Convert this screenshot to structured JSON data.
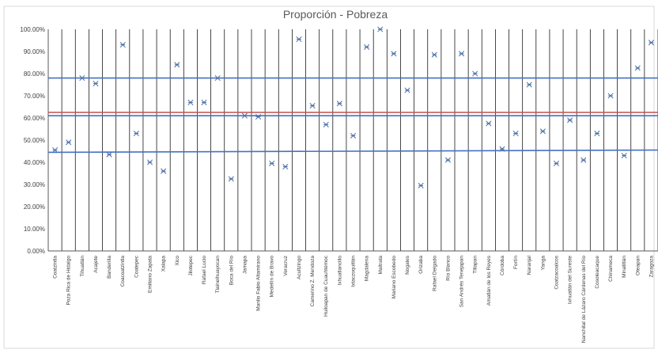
{
  "chart_data": {
    "type": "scatter",
    "title": "Proporción - Pobreza",
    "xlabel": "",
    "ylabel": "",
    "ylim": [
      0,
      100
    ],
    "y_tick_format": "percent_2dp",
    "y_ticks": [
      "0.00%",
      "10.00%",
      "20.00%",
      "30.00%",
      "40.00%",
      "50.00%",
      "60.00%",
      "70.00%",
      "80.00%",
      "90.00%",
      "100.00%"
    ],
    "grid": {
      "vertical": true,
      "horizontal": false
    },
    "legend": "none",
    "marker": "asterisk",
    "categories": [
      "Coatzintla",
      "Poza Rica de Hidalgo",
      "Tihuatlán",
      "Acajete",
      "Banderilla",
      "Coacoatzintla",
      "Coatepec",
      "Emiliano Zapata",
      "Xalapa",
      "Xico",
      "Jilotepec",
      "Rafael Lucio",
      "Tlalnelhuayocan",
      "Boca del Río",
      "Jamapa",
      "Manlio Fabio Altamirano",
      "Medellín de Bravo",
      "Veracruz",
      "Acultzingo",
      "Camerino Z. Mendoza",
      "Huiloapan de Cuauhtémoc",
      "Ixhuatlancillo",
      "Ixtaczoquitlán",
      "Magdalena",
      "Maltrata",
      "Mariano Escobedo",
      "Nogales",
      "Orizaba",
      "Rafael Delgado",
      "Río Blanco",
      "San Andrés Tenejapan",
      "Tlilapan",
      "Amatlán de los Reyes",
      "Córdoba",
      "Fortín",
      "Naranjal",
      "Yanga",
      "Coatzacoalcos",
      "Ixhuatlán del Sureste",
      "Nanchital de Lázaro Cárdenas del Río",
      "Cosoleacaque",
      "Chinameca",
      "Minatitlán",
      "Oteapan",
      "Zaragoza"
    ],
    "series": [
      {
        "values": [
          45.5,
          49,
          78,
          75.5,
          43.5,
          93,
          53,
          40,
          36,
          84,
          67,
          67,
          78,
          32.5,
          61,
          60.5,
          39.5,
          38,
          95.5,
          65.5,
          57,
          66.5,
          52,
          92,
          100,
          89,
          72.5,
          29.5,
          88.5,
          41,
          89,
          80,
          57.5,
          46,
          53,
          75,
          54,
          39.5,
          59,
          41,
          53,
          70,
          43,
          82.5,
          94
        ],
        "color": "#4a6fa5"
      }
    ],
    "reference_lines": [
      {
        "y": 78,
        "color": "#4472c4"
      },
      {
        "y": 61,
        "color": "#4472c4"
      },
      {
        "y": 62.5,
        "color": "#c0504d"
      },
      {
        "y": 44.5,
        "color": "#4472c4",
        "y_end": 45.5
      }
    ]
  }
}
